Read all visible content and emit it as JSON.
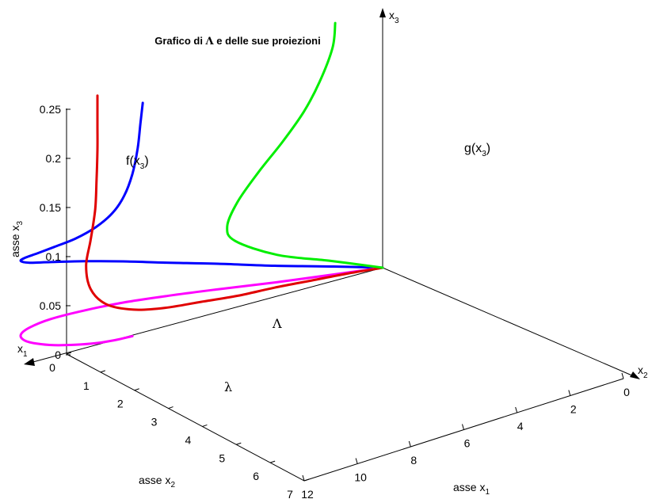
{
  "chart_data": {
    "type": "line",
    "title_parts": [
      "Grafico di ",
      "Λ",
      " e delle sue proiezioni"
    ],
    "z_axis": {
      "label": "asse x",
      "sub": "3",
      "range": [
        0,
        0.25
      ],
      "ticks": [
        0,
        0.05,
        0.1,
        0.15,
        0.2,
        0.25
      ],
      "tick_labels": [
        "0",
        "0.05",
        "0.1",
        "0.15",
        "0.2",
        "0.25"
      ]
    },
    "y_axis": {
      "label": "asse x",
      "sub": "2",
      "range": [
        0,
        7
      ],
      "ticks": [
        0,
        1,
        2,
        3,
        4,
        5,
        6,
        7
      ],
      "tick_labels": [
        "0",
        "1",
        "2",
        "3",
        "4",
        "5",
        "6",
        "7"
      ]
    },
    "x_axis": {
      "label": "asse x",
      "sub": "1",
      "range": [
        0,
        12
      ],
      "ticks": [
        0,
        2,
        4,
        6,
        8,
        10,
        12
      ],
      "tick_labels": [
        "0",
        "2",
        "4",
        "6",
        "8",
        "10",
        "12"
      ]
    },
    "arrow_labels": {
      "x1": {
        "main": "x",
        "sub": "1"
      },
      "x2": {
        "main": "x",
        "sub": "2"
      },
      "x3": {
        "main": "x",
        "sub": "3"
      }
    },
    "series": [
      {
        "name": "Λ",
        "color": "#0000ff",
        "points": [
          [
            0,
            0,
            0
          ],
          [
            1,
            0.5,
            0.008
          ],
          [
            2.2,
            1.1,
            0.017
          ],
          [
            3.5,
            1.6,
            0.026
          ],
          [
            4.6,
            2.1,
            0.034
          ],
          [
            5.4,
            2.6,
            0.042
          ],
          [
            5.8,
            3.2,
            0.05
          ],
          [
            5.9,
            3.9,
            0.058
          ],
          [
            5.5,
            4.6,
            0.066
          ],
          [
            4.8,
            5.2,
            0.075
          ],
          [
            3.8,
            5.7,
            0.084
          ],
          [
            2.8,
            6.0,
            0.092
          ],
          [
            1.9,
            6.15,
            0.1
          ],
          [
            1.1,
            6.15,
            0.108
          ],
          [
            0.5,
            6.05,
            0.118
          ],
          [
            0.2,
            5.85,
            0.13
          ],
          [
            0.1,
            5.65,
            0.145
          ],
          [
            0.05,
            5.5,
            0.165
          ],
          [
            0.02,
            5.4,
            0.19
          ],
          [
            0.0,
            5.35,
            0.215
          ],
          [
            0.0,
            5.3,
            0.235
          ]
        ]
      },
      {
        "name": "λ",
        "color": "#ff00ff",
        "points": [
          [
            0,
            0,
            0
          ],
          [
            1,
            0.5,
            0
          ],
          [
            2.2,
            1.1,
            0
          ],
          [
            3.5,
            1.6,
            0
          ],
          [
            4.6,
            2.1,
            0
          ],
          [
            5.4,
            2.6,
            0
          ],
          [
            5.8,
            3.2,
            0
          ],
          [
            5.9,
            3.9,
            0
          ],
          [
            5.5,
            4.6,
            0
          ],
          [
            4.8,
            5.2,
            0
          ],
          [
            3.8,
            5.7,
            0
          ],
          [
            2.8,
            6.0,
            0
          ],
          [
            1.9,
            6.15,
            0
          ],
          [
            1.1,
            6.15,
            0
          ],
          [
            0.5,
            6.05,
            0
          ],
          [
            0.2,
            5.85,
            0
          ],
          [
            0.1,
            5.65,
            0
          ],
          [
            0.05,
            5.5,
            0
          ]
        ]
      },
      {
        "name": "f(x3)",
        "label_main": "f(x",
        "label_sub": "3",
        "label_end": ")",
        "color": "#e00000",
        "points": [
          [
            0,
            0,
            0
          ],
          [
            0,
            0.8,
            0.004
          ],
          [
            0,
            1.6,
            0.007
          ],
          [
            0,
            2.4,
            0.01
          ],
          [
            0,
            3.2,
            0.012
          ],
          [
            0,
            4.0,
            0.016
          ],
          [
            0,
            4.8,
            0.02
          ],
          [
            0,
            5.5,
            0.027
          ],
          [
            0,
            6.1,
            0.04
          ],
          [
            0,
            6.45,
            0.06
          ],
          [
            0,
            6.55,
            0.085
          ],
          [
            0,
            6.45,
            0.11
          ],
          [
            0,
            6.35,
            0.14
          ],
          [
            0,
            6.32,
            0.17
          ],
          [
            0,
            6.3,
            0.2
          ],
          [
            0,
            6.3,
            0.225
          ],
          [
            0,
            6.3,
            0.255
          ]
        ]
      },
      {
        "name": "g(x3)",
        "label_main": "g(x",
        "label_sub": "3",
        "label_end": ")",
        "color": "#00ee00",
        "points": [
          [
            0,
            0,
            0
          ],
          [
            2,
            0,
            0.008
          ],
          [
            4,
            0,
            0.015
          ],
          [
            5.6,
            0,
            0.03
          ],
          [
            5.9,
            0,
            0.045
          ],
          [
            5.5,
            0,
            0.07
          ],
          [
            4.7,
            0,
            0.1
          ],
          [
            3.8,
            0,
            0.13
          ],
          [
            3.0,
            0,
            0.16
          ],
          [
            2.4,
            0,
            0.19
          ],
          [
            1.9,
            0,
            0.225
          ],
          [
            1.8,
            0,
            0.25
          ]
        ]
      }
    ],
    "grid": false,
    "legend": "none"
  }
}
